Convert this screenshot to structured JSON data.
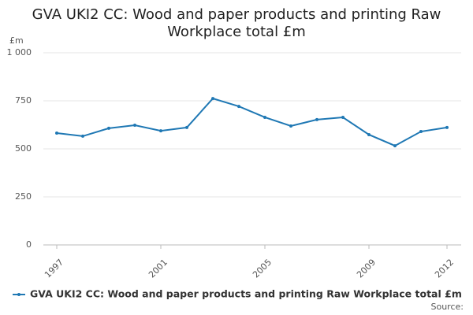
{
  "chart_data": {
    "type": "line",
    "title": "GVA UKI2 CC: Wood and paper products and printing Raw Workplace total £m",
    "y_axis_label": "£m",
    "x": [
      1997,
      1998,
      1999,
      2000,
      2001,
      2002,
      2003,
      2004,
      2005,
      2006,
      2007,
      2008,
      2009,
      2010,
      2011,
      2012
    ],
    "series": [
      {
        "name": "GVA UKI2 CC: Wood and paper products and printing Raw Workplace total £m",
        "color": "#1f78b4",
        "values": [
          582,
          566,
          607,
          623,
          594,
          611,
          762,
          721,
          664,
          619,
          652,
          664,
          574,
          516,
          590,
          611
        ]
      }
    ],
    "xlim": [
      1997,
      2012
    ],
    "xticks": [
      1997,
      2001,
      2005,
      2009,
      2012
    ],
    "ylim": [
      0,
      1000
    ],
    "yticks": [
      0,
      250,
      500,
      750,
      {
        "value": 1000,
        "label": "1 000"
      }
    ],
    "grid": true,
    "legend": "bottom",
    "source": "Source:"
  }
}
